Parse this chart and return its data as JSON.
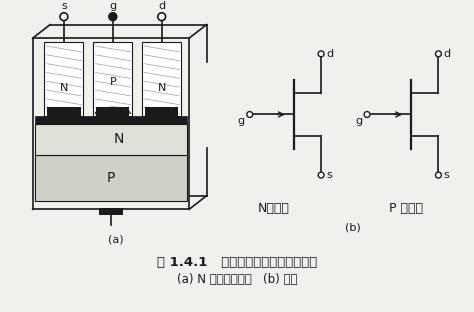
{
  "bg_color": "#f0f0ec",
  "line_color": "#1a1a1a",
  "fill_dark": "#1a1a1a",
  "fill_gray": "#d0d0c8",
  "fill_white": "#ffffff",
  "title_line1": "图 1.4.1   结型场效应管的结构和符号",
  "title_line2": "(a) N 沟道管的结构   (b) 符号",
  "label_a": "(a)",
  "label_b": "(b)",
  "label_s": "s",
  "label_g": "g",
  "label_d": "d",
  "label_N": "N",
  "label_P": "P",
  "label_N_ch": "N沟道管",
  "label_P_ch": "P 沟道管",
  "font_size_label": 8,
  "font_size_title": 9,
  "font_size_caption": 8,
  "font_size_big": 10
}
